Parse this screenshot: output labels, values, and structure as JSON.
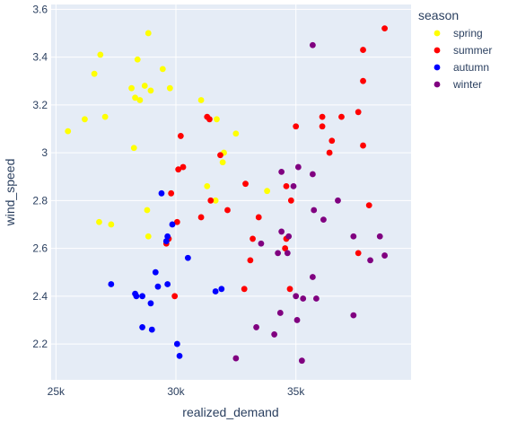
{
  "chart_data": {
    "type": "scatter",
    "xlabel": "realized_demand",
    "ylabel": "wind_speed",
    "xlim": [
      24800,
      39800
    ],
    "ylim": [
      2.05,
      3.62
    ],
    "x_ticks": [
      25000,
      30000,
      35000
    ],
    "x_tick_labels": [
      "25k",
      "30k",
      "35k"
    ],
    "y_ticks": [
      2.2,
      2.4,
      2.6,
      2.8,
      3.0,
      3.2,
      3.4,
      3.6
    ],
    "y_tick_labels": [
      "2.2",
      "2.4",
      "2.6",
      "2.8",
      "3",
      "3.2",
      "3.4",
      "3.6"
    ],
    "grid": true,
    "plot_background": "#e5ecf6",
    "grid_color": "#ffffff",
    "legend": {
      "title": "season",
      "placement": "right"
    },
    "series": [
      {
        "name": "spring",
        "color": "#ffff00",
        "points": [
          [
            25500,
            3.09
          ],
          [
            26200,
            3.14
          ],
          [
            26600,
            3.33
          ],
          [
            26850,
            3.41
          ],
          [
            27050,
            3.15
          ],
          [
            26800,
            2.71
          ],
          [
            27300,
            2.7
          ],
          [
            28150,
            3.27
          ],
          [
            28300,
            3.23
          ],
          [
            28400,
            3.39
          ],
          [
            28500,
            3.22
          ],
          [
            28700,
            3.28
          ],
          [
            28850,
            3.5
          ],
          [
            28950,
            3.26
          ],
          [
            29450,
            3.35
          ],
          [
            29750,
            3.27
          ],
          [
            28250,
            3.02
          ],
          [
            28800,
            2.76
          ],
          [
            28850,
            2.65
          ],
          [
            31050,
            3.22
          ],
          [
            31300,
            2.86
          ],
          [
            31650,
            2.8
          ],
          [
            31700,
            3.14
          ],
          [
            31950,
            2.96
          ],
          [
            32000,
            3.0
          ],
          [
            32500,
            3.08
          ],
          [
            33800,
            2.84
          ]
        ]
      },
      {
        "name": "summer",
        "color": "#ff0000",
        "points": [
          [
            38700,
            3.52
          ],
          [
            37800,
            3.43
          ],
          [
            37800,
            3.3
          ],
          [
            37600,
            3.17
          ],
          [
            37800,
            3.03
          ],
          [
            36900,
            3.15
          ],
          [
            36100,
            3.15
          ],
          [
            36100,
            3.11
          ],
          [
            36400,
            3.0
          ],
          [
            36500,
            3.05
          ],
          [
            35000,
            3.11
          ],
          [
            31300,
            3.15
          ],
          [
            31400,
            3.14
          ],
          [
            30200,
            3.07
          ],
          [
            30100,
            2.93
          ],
          [
            30300,
            2.94
          ],
          [
            31850,
            2.99
          ],
          [
            29800,
            2.83
          ],
          [
            30050,
            2.71
          ],
          [
            29600,
            2.62
          ],
          [
            29700,
            2.64
          ],
          [
            29950,
            2.4
          ],
          [
            31050,
            2.73
          ],
          [
            31450,
            2.8
          ],
          [
            32150,
            2.76
          ],
          [
            32900,
            2.87
          ],
          [
            33200,
            2.64
          ],
          [
            33450,
            2.73
          ],
          [
            33100,
            2.55
          ],
          [
            32850,
            2.43
          ],
          [
            34600,
            2.86
          ],
          [
            34800,
            2.8
          ],
          [
            34600,
            2.64
          ],
          [
            34550,
            2.6
          ],
          [
            34750,
            2.43
          ],
          [
            37600,
            2.58
          ],
          [
            38050,
            2.78
          ]
        ]
      },
      {
        "name": "autumn",
        "color": "#0000ff",
        "points": [
          [
            29400,
            2.83
          ],
          [
            29850,
            2.7
          ],
          [
            29650,
            2.65
          ],
          [
            29600,
            2.63
          ],
          [
            30500,
            2.56
          ],
          [
            29150,
            2.5
          ],
          [
            29250,
            2.44
          ],
          [
            29650,
            2.45
          ],
          [
            27300,
            2.45
          ],
          [
            28300,
            2.41
          ],
          [
            28350,
            2.4
          ],
          [
            28600,
            2.4
          ],
          [
            28950,
            2.37
          ],
          [
            31650,
            2.42
          ],
          [
            31900,
            2.43
          ],
          [
            28600,
            2.27
          ],
          [
            29000,
            2.26
          ],
          [
            30050,
            2.2
          ],
          [
            30150,
            2.15
          ]
        ]
      },
      {
        "name": "winter",
        "color": "#800080",
        "points": [
          [
            35700,
            3.45
          ],
          [
            35100,
            2.94
          ],
          [
            34400,
            2.92
          ],
          [
            35700,
            2.91
          ],
          [
            34900,
            2.86
          ],
          [
            36750,
            2.8
          ],
          [
            35750,
            2.76
          ],
          [
            36150,
            2.72
          ],
          [
            34400,
            2.67
          ],
          [
            34700,
            2.65
          ],
          [
            37400,
            2.65
          ],
          [
            38500,
            2.65
          ],
          [
            38100,
            2.55
          ],
          [
            38700,
            2.57
          ],
          [
            33550,
            2.62
          ],
          [
            34250,
            2.58
          ],
          [
            34650,
            2.58
          ],
          [
            35700,
            2.48
          ],
          [
            35000,
            2.4
          ],
          [
            35300,
            2.39
          ],
          [
            35850,
            2.39
          ],
          [
            34350,
            2.33
          ],
          [
            35050,
            2.3
          ],
          [
            37400,
            2.32
          ],
          [
            33350,
            2.27
          ],
          [
            34100,
            2.24
          ],
          [
            32500,
            2.14
          ],
          [
            35250,
            2.13
          ]
        ]
      }
    ]
  }
}
